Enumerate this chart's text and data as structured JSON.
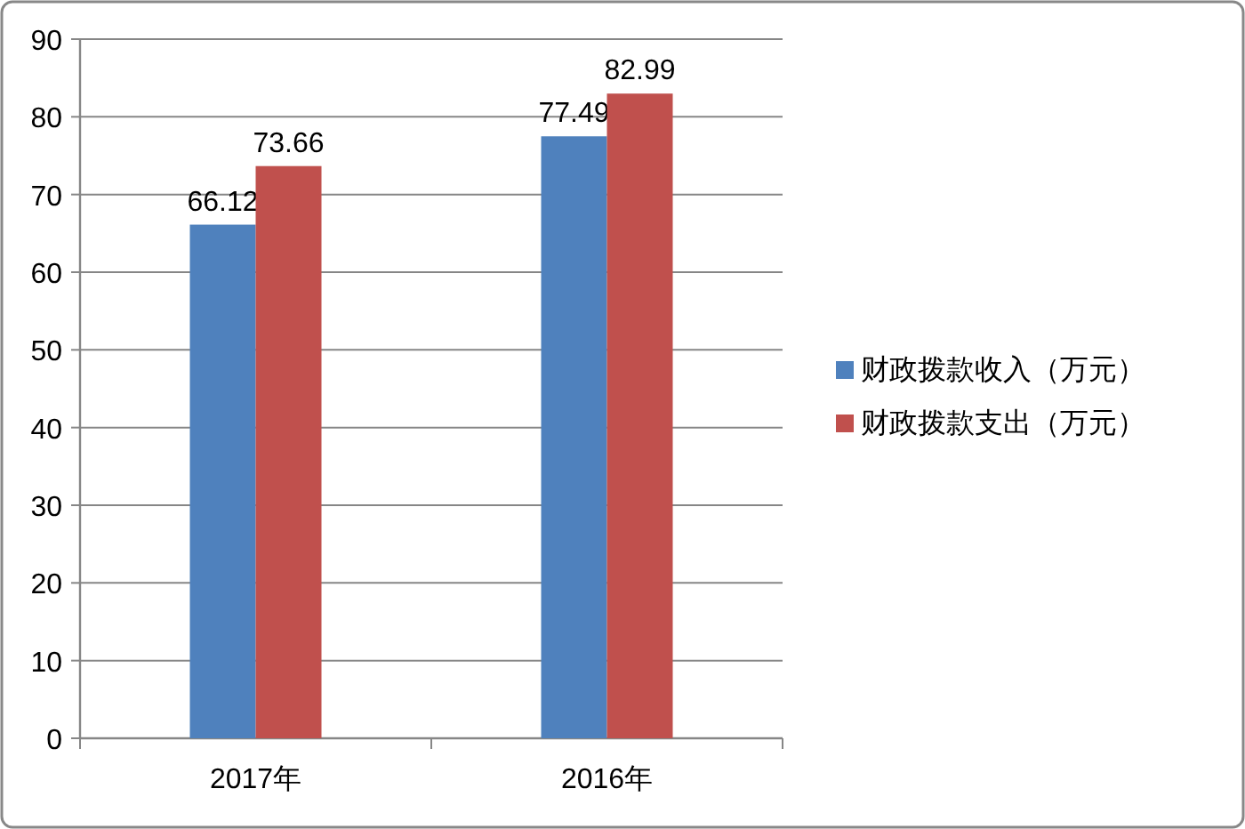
{
  "chart_data": {
    "type": "bar",
    "categories": [
      "2017年",
      "2016年"
    ],
    "series": [
      {
        "name": "财政拨款收入（万元）",
        "color": "#4f81bd",
        "values": [
          66.12,
          77.49
        ]
      },
      {
        "name": "财政拨款支出（万元）",
        "color": "#c0504d",
        "values": [
          73.66,
          82.99
        ]
      }
    ],
    "ylim": [
      0,
      90
    ],
    "yticks": [
      0,
      10,
      20,
      30,
      40,
      50,
      60,
      70,
      80,
      90
    ],
    "grid": "y",
    "legend": "right",
    "data_labels": true
  }
}
